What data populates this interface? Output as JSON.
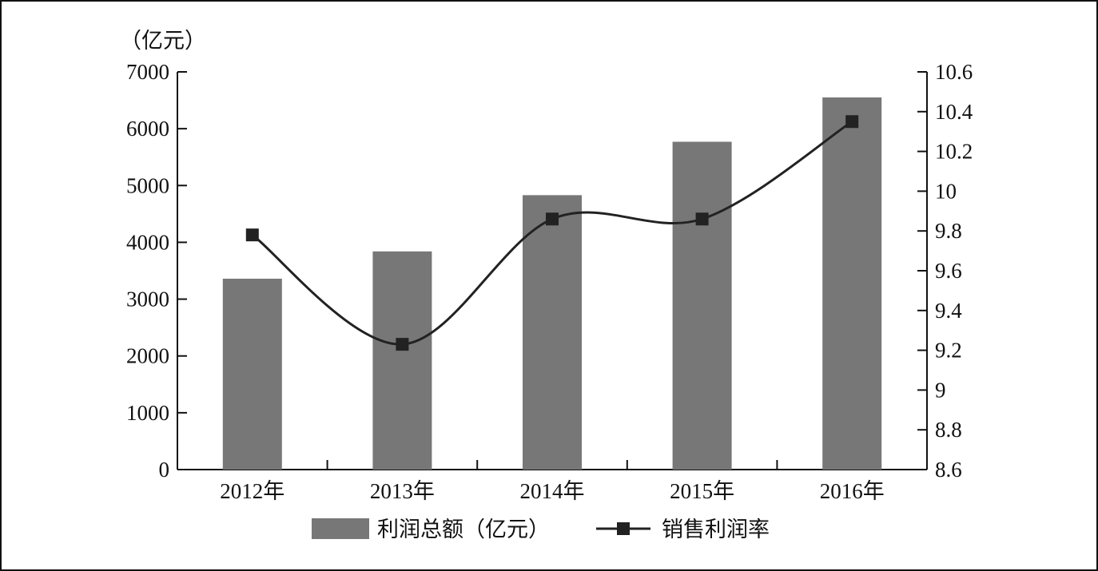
{
  "chart_data": {
    "type": "bar",
    "categories": [
      "2012年",
      "2013年",
      "2014年",
      "2015年",
      "2016年"
    ],
    "y_unit_label": "（亿元）",
    "ylim": [
      0,
      7000
    ],
    "yticks": [
      "0",
      "1000",
      "2000",
      "3000",
      "4000",
      "5000",
      "6000",
      "7000"
    ],
    "y2lim": [
      8.6,
      10.6
    ],
    "y2ticks": [
      "8.6",
      "8.8",
      "9",
      "9.2",
      "9.4",
      "9.6",
      "9.8",
      "10",
      "10.2",
      "10.4",
      "10.6"
    ],
    "series": [
      {
        "name": "利润总额（亿元）",
        "kind": "bar",
        "axis": "left",
        "color": "#777777",
        "values": [
          3360,
          3840,
          4830,
          5770,
          6550
        ]
      },
      {
        "name": "销售利润率",
        "kind": "line",
        "axis": "right",
        "color": "#222222",
        "values": [
          9.78,
          9.23,
          9.86,
          9.86,
          10.35
        ]
      }
    ],
    "legend_position": "bottom",
    "grid": false
  }
}
